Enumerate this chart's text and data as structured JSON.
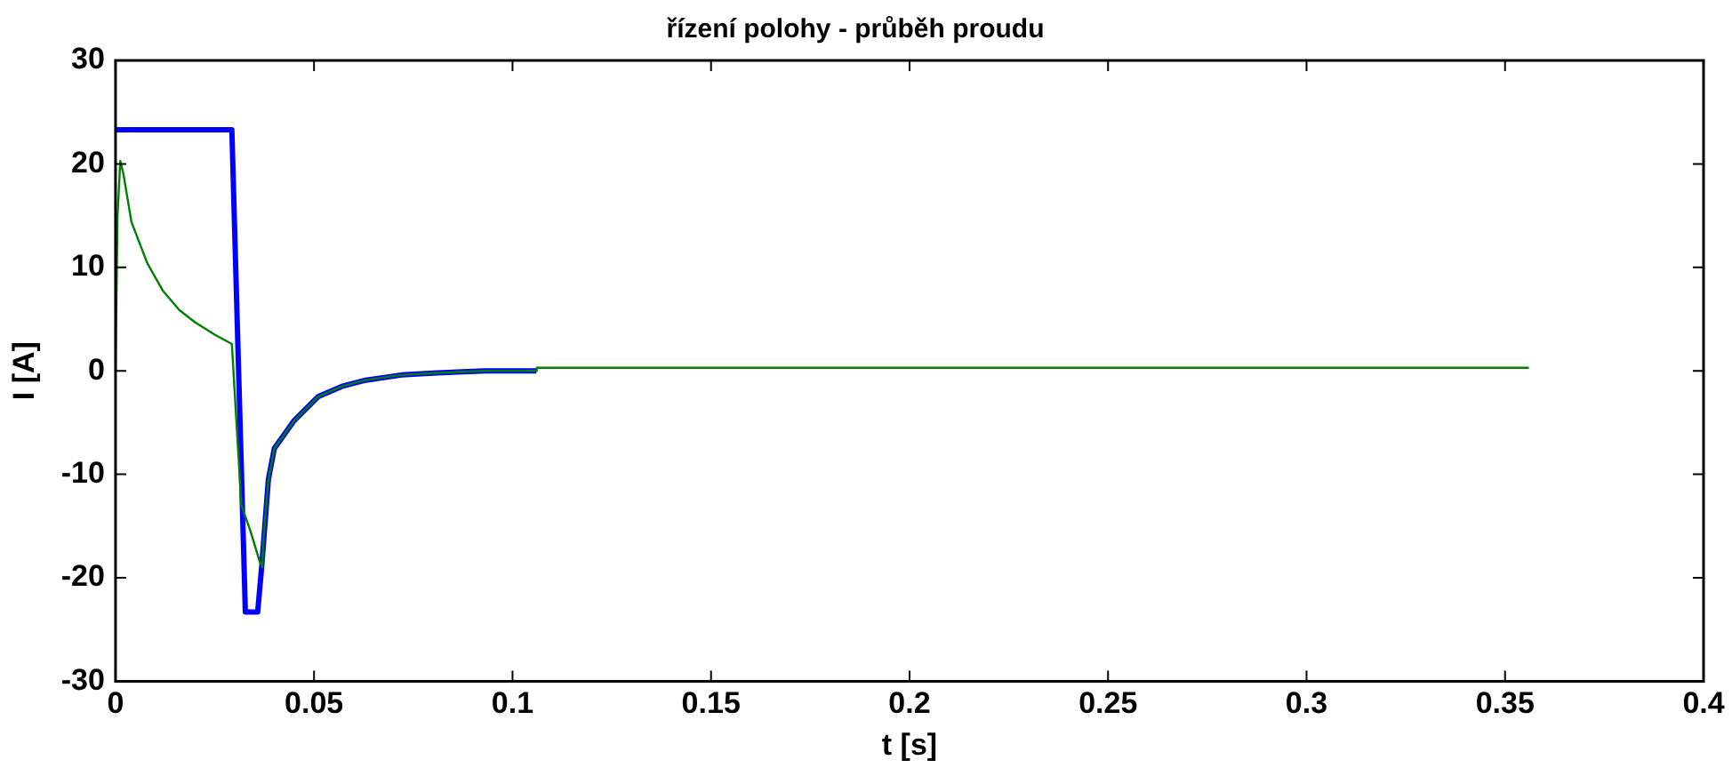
{
  "chart_data": {
    "type": "line",
    "title": "řízení polohy - průběh proudu",
    "xlabel": "t [s]",
    "ylabel": "I [A]",
    "xlim": [
      0,
      0.4
    ],
    "xticks": [
      0,
      0.05,
      0.1,
      0.15,
      0.2,
      0.25,
      0.3,
      0.35,
      0.4
    ],
    "ylim": [
      -30,
      30
    ],
    "yticks": [
      -30,
      -20,
      -10,
      0,
      10,
      20,
      30
    ],
    "grid": false,
    "legend": false,
    "marker": "none",
    "line_style": "solid",
    "series": [
      {
        "color": "#0000ff",
        "x": [
          0.0001,
          0.0293,
          0.0327,
          0.0358,
          0.0368,
          0.0385,
          0.04,
          0.045,
          0.051,
          0.057,
          0.063,
          0.072,
          0.081,
          0.093,
          0.106
        ],
        "values": [
          23.3,
          23.3,
          -23.3,
          -23.3,
          -19,
          -10.5,
          -7.5,
          -4.8,
          -2.5,
          -1.5,
          -0.9,
          -0.4,
          -0.2,
          0,
          0
        ]
      },
      {
        "color": "#008000",
        "x": [
          0,
          0.0005,
          0.0012,
          0.002,
          0.004,
          0.008,
          0.012,
          0.016,
          0.02,
          0.025,
          0.0293,
          0.0317,
          0.034,
          0.0362,
          0.037,
          0.0372,
          0.0385,
          0.04,
          0.045,
          0.051,
          0.057,
          0.063,
          0.072,
          0.081,
          0.093,
          0.106,
          0.1061,
          0.356
        ],
        "values": [
          0,
          15,
          20.3,
          19,
          14.4,
          10.4,
          7.7,
          5.9,
          4.7,
          3.5,
          2.6,
          -13,
          -15.5,
          -18.3,
          -19,
          -16.5,
          -10.5,
          -7.5,
          -4.8,
          -2.5,
          -1.5,
          -0.9,
          -0.4,
          -0.2,
          0,
          0,
          0.3,
          0.3
        ]
      }
    ]
  }
}
